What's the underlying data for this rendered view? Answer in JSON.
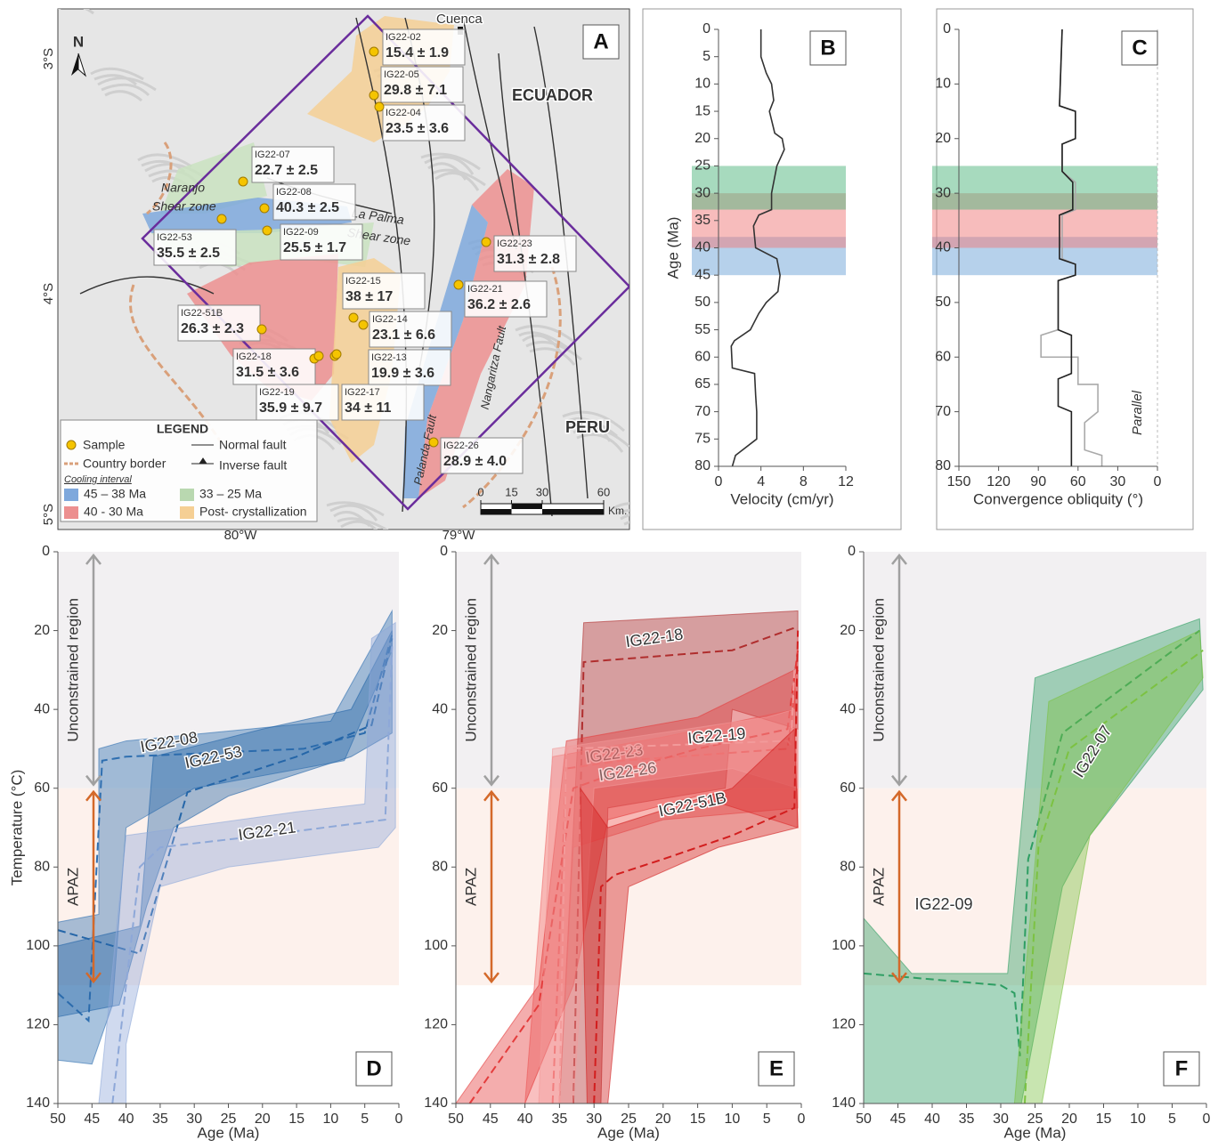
{
  "map": {
    "panel": "A",
    "north": "N",
    "lat_labels": [
      "3°S",
      "4°S",
      "5°S"
    ],
    "lon_labels": [
      "80°W",
      "79°W"
    ],
    "places": [
      "Cuenca",
      "ECUADOR",
      "PERU"
    ],
    "structures": [
      "Naranjo",
      "Shear zone",
      "La Palma",
      "Shear zone",
      "Palanda Fault",
      "Nangaritza Fault"
    ],
    "samples": [
      {
        "name": "IG22-02",
        "age": "15.4 ± 1.9"
      },
      {
        "name": "IG22-05",
        "age": "29.8 ± 7.1"
      },
      {
        "name": "IG22-04",
        "age": "23.5 ± 3.6"
      },
      {
        "name": "IG22-07",
        "age": "22.7 ± 2.5"
      },
      {
        "name": "IG22-08",
        "age": "40.3 ± 2.5"
      },
      {
        "name": "IG22-53",
        "age": "35.5 ± 2.5"
      },
      {
        "name": "IG22-09",
        "age": "25.5 ± 1.7"
      },
      {
        "name": "IG22-23",
        "age": "31.3 ± 2.8"
      },
      {
        "name": "IG22-15",
        "age": "38 ± 17"
      },
      {
        "name": "IG22-21",
        "age": "36.2 ± 2.6"
      },
      {
        "name": "IG22-51B",
        "age": "26.3 ± 2.3"
      },
      {
        "name": "IG22-14",
        "age": "23.1 ± 6.6"
      },
      {
        "name": "IG22-18",
        "age": "31.5 ± 3.6"
      },
      {
        "name": "IG22-13",
        "age": "19.9 ± 3.6"
      },
      {
        "name": "IG22-19",
        "age": "35.9 ± 9.7"
      },
      {
        "name": "IG22-17",
        "age": "34 ± 11"
      },
      {
        "name": "IG22-26",
        "age": "28.9 ± 4.0"
      }
    ],
    "legend": {
      "title": "LEGEND",
      "items": [
        "Sample",
        "Normal fault",
        "Country border",
        "Inverse fault"
      ],
      "subtitle": "Cooling interval",
      "intervals": [
        {
          "label": "45 – 38 Ma",
          "color": "#7ea8dc"
        },
        {
          "label": "33 – 25 Ma",
          "color": "#b9d8b0"
        },
        {
          "label": "40 -  30 Ma",
          "color": "#ec8f8f"
        },
        {
          "label": "Post- crystallization",
          "color": "#f5cf94"
        }
      ]
    },
    "scale": {
      "ticks": [
        0,
        15,
        30,
        60
      ],
      "unit": "Km."
    }
  },
  "chart_data": [
    {
      "type": "line",
      "panel": "B",
      "xlabel": "Velocity (cm/yr)",
      "ylabel": "Age (Ma)",
      "xlim": [
        0,
        12
      ],
      "xticks": [
        0,
        4,
        8,
        12
      ],
      "ylim": [
        0,
        80
      ],
      "yticks": [
        0,
        5,
        10,
        15,
        20,
        25,
        30,
        35,
        40,
        45,
        50,
        55,
        60,
        65,
        70,
        75,
        80
      ],
      "y_inverted": true,
      "bands": [
        {
          "from": 38,
          "to": 45,
          "color": "#6ea3d8"
        },
        {
          "from": 30,
          "to": 40,
          "color": "#f07a7a"
        },
        {
          "from": 25,
          "to": 33,
          "color": "#4fb57e"
        }
      ],
      "series": [
        {
          "color": "#333333",
          "x": [
            4.0,
            4.0,
            4.5,
            5.0,
            5.2,
            4.8,
            5.3,
            6.0,
            6.2,
            5.5,
            5.0,
            5.0,
            3.8,
            3.3,
            3.5,
            5.5,
            5.8,
            5.6,
            4.5,
            3.8,
            3.0,
            1.5,
            1.2,
            1.3,
            3.4,
            3.5,
            3.6,
            3.6,
            1.6,
            1.3
          ],
          "values": [
            0,
            5,
            8,
            10,
            13,
            15,
            19,
            20,
            22,
            25,
            30,
            33,
            34,
            36,
            40,
            42,
            45,
            48,
            50,
            52,
            55,
            57,
            58,
            62,
            63,
            67,
            70,
            75,
            78,
            80
          ]
        }
      ]
    },
    {
      "type": "line",
      "panel": "C",
      "xlabel": "Convergence obliquity (°)",
      "annotation": "Parallel",
      "xlim": [
        150,
        0
      ],
      "xticks": [
        150,
        120,
        90,
        60,
        30,
        0
      ],
      "ylim": [
        0,
        80
      ],
      "yticks": [
        0,
        10,
        20,
        30,
        40,
        50,
        60,
        70,
        80
      ],
      "y_inverted": true,
      "bands": [
        {
          "from": 38,
          "to": 45,
          "color": "#6ea3d8"
        },
        {
          "from": 30,
          "to": 40,
          "color": "#f07a7a"
        },
        {
          "from": 25,
          "to": 33,
          "color": "#4fb57e"
        }
      ],
      "series": [
        {
          "color": "#aaaaaa",
          "x": [
            72,
            74,
            62,
            62,
            72,
            72,
            62,
            62,
            72,
            72,
            62,
            62,
            75,
            75,
            88,
            88,
            60,
            60,
            45,
            45,
            55,
            55,
            42,
            42
          ],
          "values": [
            0,
            14,
            15,
            20,
            21,
            26,
            28,
            33,
            34,
            42,
            43,
            45,
            46,
            55,
            56,
            60,
            60,
            65,
            65,
            70,
            72,
            77,
            78,
            80
          ]
        },
        {
          "color": "#222222",
          "x": [
            72,
            74,
            62,
            62,
            72,
            72,
            64,
            64,
            74,
            74,
            62,
            62,
            75,
            75,
            65,
            65,
            75,
            75,
            65,
            65
          ],
          "values": [
            0,
            14,
            15,
            20,
            21,
            26,
            28,
            33,
            34,
            42,
            43,
            45,
            46,
            55,
            56,
            63,
            64,
            69,
            70,
            80
          ]
        }
      ]
    },
    {
      "type": "area",
      "panel": "D",
      "xlabel": "Age (Ma)",
      "ylabel": "Temperature (°C)",
      "xlim": [
        50,
        0
      ],
      "xticks": [
        50,
        45,
        40,
        35,
        30,
        25,
        20,
        15,
        10,
        5,
        0
      ],
      "ylim": [
        0,
        140
      ],
      "yticks": [
        0,
        20,
        40,
        60,
        80,
        100,
        120,
        140
      ],
      "y_inverted": true,
      "regions": [
        {
          "label": "Unconstrained region",
          "from": 0,
          "to": 60,
          "color": "#f2f0f2",
          "label_color": "#a0a0a0"
        },
        {
          "label": "APAZ",
          "from": 60,
          "to": 110,
          "color": "#fdf1ec",
          "label_color": "#d4692a"
        }
      ],
      "series": [
        {
          "name": "IG22-08",
          "color": "#2f6fb0",
          "x": [
            50,
            45.5,
            43.5,
            40,
            14,
            5,
            1
          ],
          "values": [
            112,
            119,
            53,
            52,
            50,
            46,
            21
          ],
          "envelope": {
            "x": [
              50,
              44,
              44,
              40,
              10,
              1,
              1,
              8,
              30,
              40,
              42,
              45,
              50
            ],
            "values": [
              94,
              92,
              50,
              48,
              43,
              15,
              25,
              53,
              60,
              70,
              115,
              130,
              129
            ]
          }
        },
        {
          "name": "IG22-53",
          "color": "#2566a8",
          "x": [
            50,
            38,
            31,
            15,
            4,
            1
          ],
          "values": [
            96,
            102,
            61,
            52,
            44,
            22
          ],
          "envelope": {
            "x": [
              50,
              38,
              36,
              20,
              7,
              1,
              1,
              7,
              25,
              33,
              37,
              41,
              50
            ],
            "values": [
              100,
              95,
              52,
              45,
              40,
              20,
              46,
              52,
              62,
              70,
              90,
              115,
              118
            ]
          }
        },
        {
          "name": "IG22-21",
          "color": "#8ea8d8",
          "x": [
            42,
            38,
            35,
            20,
            2,
            1
          ],
          "values": [
            140,
            80,
            75,
            72,
            68,
            24
          ],
          "envelope": {
            "x": [
              44,
              40,
              15,
              5,
              4,
              0.5,
              0.5,
              3,
              25,
              35,
              40,
              40
            ],
            "values": [
              140,
              72,
              66,
              64,
              22,
              18,
              70,
              75,
              80,
              85,
              125,
              140
            ]
          }
        }
      ]
    },
    {
      "type": "area",
      "panel": "E",
      "xlabel": "Age (Ma)",
      "xlim": [
        50,
        0
      ],
      "xticks": [
        50,
        45,
        40,
        35,
        30,
        25,
        20,
        15,
        10,
        5,
        0
      ],
      "ylim": [
        0,
        140
      ],
      "yticks": [
        0,
        20,
        40,
        60,
        80,
        100,
        120,
        140
      ],
      "y_inverted": true,
      "regions": [
        {
          "label": "Unconstrained region",
          "from": 0,
          "to": 60,
          "color": "#f2f0f2",
          "label_color": "#a0a0a0"
        },
        {
          "label": "APAZ",
          "from": 60,
          "to": 110,
          "color": "#fdf1ec",
          "label_color": "#d4692a"
        }
      ],
      "series": [
        {
          "name": "IG22-18",
          "color": "#b02e2e",
          "x": [
            33,
            31.5,
            10,
            0.5
          ],
          "values": [
            140,
            28,
            25,
            19
          ],
          "envelope": {
            "x": [
              35,
              31.5,
              0.5,
              0.5,
              10,
              11,
              28,
              29
            ],
            "values": [
              140,
              18,
              15,
              45,
              40,
              60,
              65,
              140
            ]
          }
        },
        {
          "name": "IG22-23",
          "color": "#f06a6a",
          "x": [
            36,
            34,
            26,
            2,
            0.5
          ],
          "values": [
            140,
            55,
            53,
            50,
            30
          ],
          "envelope": {
            "x": [
              40,
              36,
              20,
              1,
              0.5,
              0.5,
              20,
              33,
              35
            ],
            "values": [
              140,
              52,
              47,
              40,
              20,
              65,
              68,
              75,
              140
            ]
          }
        },
        {
          "name": "IG22-26",
          "color": "#e43c3c",
          "x": [
            48,
            38,
            33,
            25,
            15,
            2,
            0.5
          ],
          "values": [
            140,
            115,
            60,
            55,
            50,
            45,
            25
          ],
          "envelope": {
            "x": [
              50,
              38,
              34,
              15,
              1,
              0.5,
              15,
              28,
              33,
              40
            ],
            "values": [
              140,
              110,
              48,
              42,
              30,
              70,
              62,
              68,
              110,
              140
            ]
          }
        },
        {
          "name": "IG22-19",
          "color": "#f29a9a",
          "x": [
            35,
            34,
            2,
            1.5,
            1
          ],
          "values": [
            140,
            50,
            48,
            49,
            30
          ],
          "envelope": {
            "x": [
              38,
              36,
              5,
              1,
              0.5,
              10,
              30,
              33
            ],
            "values": [
              140,
              50,
              42,
              40,
              60,
              55,
              60,
              140
            ]
          }
        },
        {
          "name": "IG22-51B",
          "color": "#d21e1e",
          "x": [
            30,
            29,
            27,
            20,
            10,
            1,
            0.5
          ],
          "values": [
            140,
            85,
            82,
            78,
            72,
            65,
            20
          ],
          "envelope": {
            "x": [
              31,
              32,
              28,
              10,
              1,
              0.5,
              12,
              25,
              28
            ],
            "values": [
              140,
              60,
              70,
              60,
              45,
              70,
              75,
              85,
              140
            ]
          }
        }
      ]
    },
    {
      "type": "area",
      "panel": "F",
      "xlabel": "Age (Ma)",
      "xlim": [
        50,
        0
      ],
      "xticks": [
        50,
        45,
        40,
        35,
        30,
        25,
        20,
        15,
        10,
        5,
        0
      ],
      "ylim": [
        0,
        140
      ],
      "yticks": [
        0,
        20,
        40,
        60,
        80,
        100,
        120,
        140
      ],
      "y_inverted": true,
      "regions": [
        {
          "label": "Unconstrained region",
          "from": 0,
          "to": 60,
          "color": "#f2f0f2",
          "label_color": "#a0a0a0"
        },
        {
          "label": "APAZ",
          "from": 60,
          "to": 110,
          "color": "#fdf1ec",
          "label_color": "#d4692a"
        }
      ],
      "series": [
        {
          "name": "IG22-09",
          "color": "#2e9e63",
          "x": [
            50,
            30,
            28,
            27.2,
            26,
            21,
            1
          ],
          "values": [
            107,
            110,
            112,
            128,
            78,
            46,
            20
          ],
          "envelope": {
            "x": [
              50,
              43,
              29,
              25,
              1,
              0.5,
              17,
              21,
              27,
              50
            ],
            "values": [
              93,
              107,
              107,
              32,
              17,
              35,
              72,
              85,
              140,
              140
            ]
          }
        },
        {
          "name": "IG22-07",
          "color": "#7cc242",
          "x": [
            26.5,
            24.5,
            20,
            0.5
          ],
          "values": [
            140,
            75,
            50,
            25
          ],
          "envelope": {
            "x": [
              28,
              23,
              1,
              0.5,
              17,
              24
            ],
            "values": [
              140,
              38,
              20,
              32,
              72,
              140
            ]
          }
        }
      ]
    }
  ]
}
